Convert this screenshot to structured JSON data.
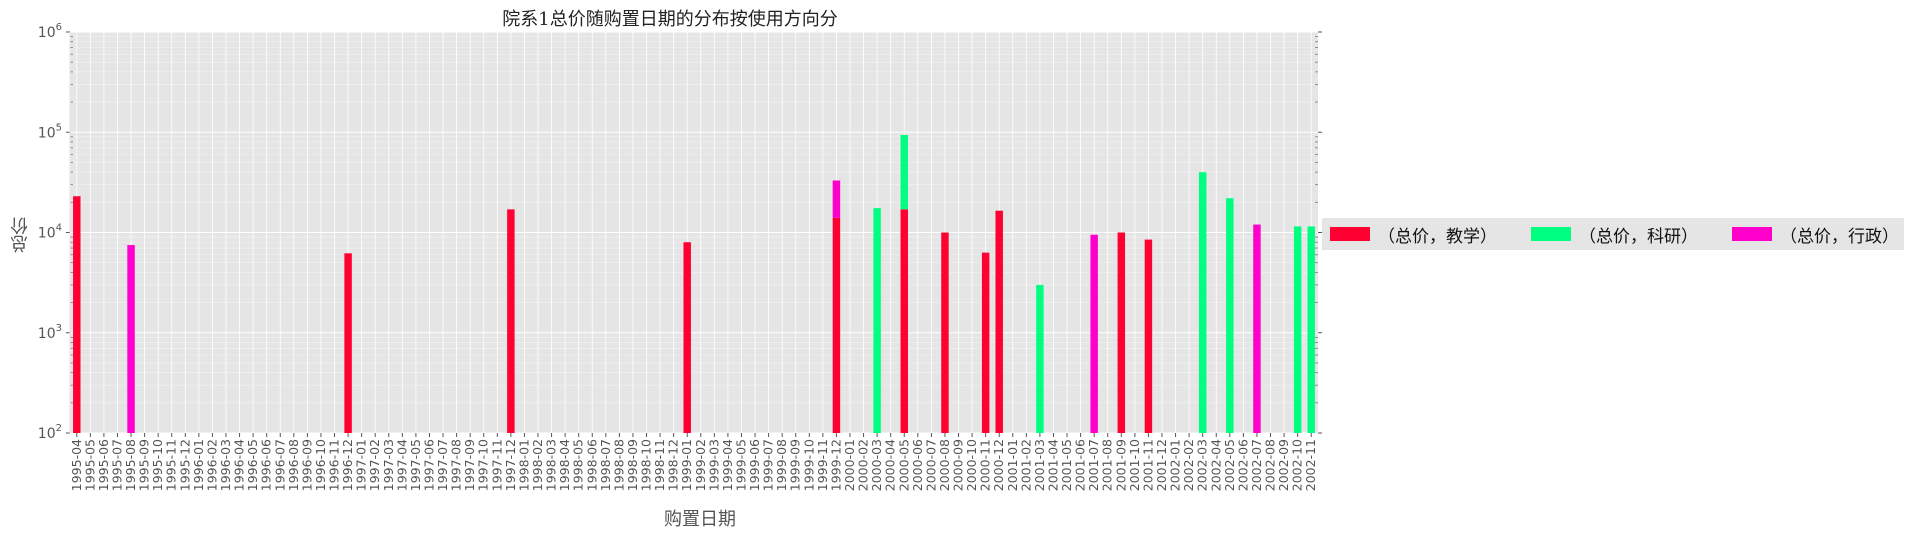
{
  "chart_data": {
    "type": "bar",
    "stacked": true,
    "title": "院系1总价随购置日期的分布按使用方向分类",
    "xlabel": "购置日期",
    "ylabel": "总价",
    "yscale": "log",
    "ylim": [
      100,
      1000000
    ],
    "ytick_labels": [
      {
        "value": 100,
        "base": "10",
        "exp": "2"
      },
      {
        "value": 1000,
        "base": "10",
        "exp": "3"
      },
      {
        "value": 10000,
        "base": "10",
        "exp": "4"
      },
      {
        "value": 100000,
        "base": "10",
        "exp": "5"
      },
      {
        "value": 1000000,
        "base": "10",
        "exp": "6"
      }
    ],
    "grid": true,
    "legend_position": "right",
    "categories": [
      "1995-04",
      "1995-05",
      "1995-06",
      "1995-07",
      "1995-08",
      "1995-09",
      "1995-10",
      "1995-11",
      "1995-12",
      "1996-01",
      "1996-02",
      "1996-03",
      "1996-04",
      "1996-05",
      "1996-06",
      "1996-07",
      "1996-08",
      "1996-09",
      "1996-10",
      "1996-11",
      "1996-12",
      "1997-01",
      "1997-02",
      "1997-03",
      "1997-04",
      "1997-05",
      "1997-06",
      "1997-07",
      "1997-08",
      "1997-09",
      "1997-10",
      "1997-11",
      "1997-12",
      "1998-01",
      "1998-02",
      "1998-03",
      "1998-04",
      "1998-05",
      "1998-06",
      "1998-07",
      "1998-08",
      "1998-09",
      "1998-10",
      "1998-11",
      "1998-12",
      "1999-01",
      "1999-02",
      "1999-03",
      "1999-04",
      "1999-05",
      "1999-06",
      "1999-07",
      "1999-08",
      "1999-09",
      "1999-10",
      "1999-11",
      "1999-12",
      "2000-01",
      "2000-02",
      "2000-03",
      "2000-04",
      "2000-05",
      "2000-06",
      "2000-07",
      "2000-08",
      "2000-09",
      "2000-10",
      "2000-11",
      "2000-12",
      "2001-01",
      "2001-02",
      "2001-03",
      "2001-04",
      "2001-05",
      "2001-06",
      "2001-07",
      "2001-08",
      "2001-09",
      "2001-10",
      "2001-11",
      "2001-12",
      "2002-01",
      "2002-02",
      "2002-03",
      "2002-04",
      "2002-05",
      "2002-06",
      "2002-07",
      "2002-08",
      "2002-09",
      "2002-10",
      "2002-11"
    ],
    "series": [
      {
        "name": "（总价，教学）",
        "color": "#ff0033",
        "values": {
          "1995-04": 23000,
          "1996-12": 6200,
          "1997-12": 17000,
          "1999-01": 8000,
          "1999-12": 14000,
          "2000-05": 17000,
          "2000-08": 10000,
          "2000-11": 6300,
          "2000-12": 16500,
          "2001-09": 10000,
          "2001-11": 8500
        }
      },
      {
        "name": "（总价，科研）",
        "color": "#00ff80",
        "values": {
          "2000-03": 17500,
          "2000-05": 77000,
          "2001-03": 3000,
          "2002-03": 40000,
          "2002-05": 22000,
          "2002-10": 11500,
          "2002-11": 11500
        }
      },
      {
        "name": "（总价，行政）",
        "color": "#ff00cc",
        "values": {
          "1995-08": 7500,
          "1999-12": 19000,
          "2001-07": 9500,
          "2002-07": 12000
        }
      }
    ]
  }
}
